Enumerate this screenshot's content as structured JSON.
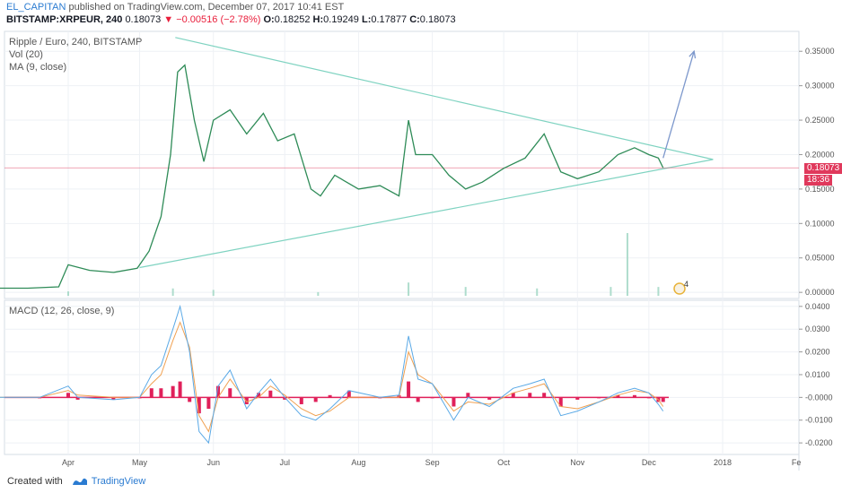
{
  "header": {
    "author": "EL_CAPITAN",
    "published": "published on TradingView.com, December 07, 2017 10:41 EST",
    "symbol": "BITSTAMP:XRPEUR, 240",
    "last": "0.18073",
    "change": "▼ −0.00516 (−2.78%)",
    "o_label": "O:",
    "o_value": "0.18252",
    "h_label": "H:",
    "h_value": "0.19249",
    "l_label": "L:",
    "l_value": "0.17877",
    "c_label": "C:",
    "c_value": "0.18073"
  },
  "legend": {
    "title": "Ripple / Euro, 240, BITSTAMP",
    "vol": "Vol (20)",
    "ma": "MA (9, close)",
    "macd": "MACD (12, 26, close, 9)"
  },
  "price_tag": {
    "value": "0.18073",
    "countdown": "18:36"
  },
  "event_badge": "4",
  "footer": {
    "created": "Created with",
    "brand": "TradingView"
  },
  "colors": {
    "price_line": "#2e8b57",
    "trend_line": "#7fd3c1",
    "arrow": "#7d98cc",
    "last_price": "#e0395c",
    "hist_pos": "#e0205a",
    "hist_neg": "#e0205a",
    "macd_line": "#5aa9e6",
    "signal_line": "#f0a050",
    "volume": "#a6d9c8"
  },
  "chart_data": [
    {
      "type": "line",
      "name": "price",
      "x_ticks": [
        "Apr",
        "May",
        "Jun",
        "Jul",
        "Aug",
        "Sep",
        "Oct",
        "Nov",
        "Dec",
        "2018",
        "Fe"
      ],
      "y_ticks": [
        "0.35000",
        "0.30000",
        "0.25000",
        "0.20000",
        "0.15000",
        "0.10000",
        "0.05000",
        "0.00000"
      ],
      "ylim": [
        -0.005,
        0.375
      ],
      "x": [
        "2017-03-01",
        "2017-03-15",
        "2017-03-28",
        "2017-04-01",
        "2017-04-10",
        "2017-04-20",
        "2017-04-30",
        "2017-05-05",
        "2017-05-10",
        "2017-05-14",
        "2017-05-17",
        "2017-05-20",
        "2017-05-24",
        "2017-05-28",
        "2017-06-01",
        "2017-06-08",
        "2017-06-15",
        "2017-06-22",
        "2017-06-28",
        "2017-07-05",
        "2017-07-12",
        "2017-07-16",
        "2017-07-22",
        "2017-08-01",
        "2017-08-10",
        "2017-08-18",
        "2017-08-22",
        "2017-08-25",
        "2017-09-01",
        "2017-09-08",
        "2017-09-15",
        "2017-09-22",
        "2017-10-01",
        "2017-10-10",
        "2017-10-18",
        "2017-10-25",
        "2017-11-01",
        "2017-11-10",
        "2017-11-18",
        "2017-11-25",
        "2017-12-01",
        "2017-12-05",
        "2017-12-07"
      ],
      "values": [
        0.006,
        0.006,
        0.008,
        0.04,
        0.032,
        0.029,
        0.035,
        0.06,
        0.11,
        0.2,
        0.32,
        0.33,
        0.25,
        0.19,
        0.25,
        0.265,
        0.23,
        0.26,
        0.22,
        0.23,
        0.15,
        0.14,
        0.17,
        0.15,
        0.155,
        0.14,
        0.25,
        0.2,
        0.2,
        0.17,
        0.15,
        0.16,
        0.18,
        0.195,
        0.23,
        0.175,
        0.165,
        0.175,
        0.2,
        0.21,
        0.2,
        0.195,
        0.181
      ],
      "last_value": 0.18073,
      "trendlines": [
        {
          "from": [
            "2017-05-16",
            0.37
          ],
          "to": [
            "2017-12-28",
            0.193
          ]
        },
        {
          "from": [
            "2017-05-01",
            0.036
          ],
          "to": [
            "2017-12-28",
            0.193
          ]
        }
      ],
      "projection_arrow": {
        "from": [
          "2017-12-07",
          0.195
        ],
        "to": [
          "2017-12-20",
          0.35
        ]
      }
    },
    {
      "type": "bar",
      "name": "volume",
      "note": "Vol (20)",
      "x": [
        "2017-04-01",
        "2017-05-15",
        "2017-06-01",
        "2017-07-15",
        "2017-08-22",
        "2017-09-15",
        "2017-10-15",
        "2017-11-15",
        "2017-11-22",
        "2017-12-05"
      ],
      "values": [
        0.006,
        0.01,
        0.008,
        0.005,
        0.018,
        0.012,
        0.01,
        0.012,
        0.085,
        0.012
      ]
    },
    {
      "type": "line",
      "name": "macd",
      "y_ticks": [
        "0.0400",
        "0.0300",
        "0.0200",
        "0.0100",
        "-0.0000",
        "-0.0100",
        "-0.0200"
      ],
      "ylim": [
        -0.0235,
        0.0415
      ],
      "x": [
        "2017-03-01",
        "2017-03-20",
        "2017-04-01",
        "2017-04-05",
        "2017-04-20",
        "2017-05-01",
        "2017-05-06",
        "2017-05-10",
        "2017-05-15",
        "2017-05-18",
        "2017-05-22",
        "2017-05-26",
        "2017-05-30",
        "2017-06-03",
        "2017-06-08",
        "2017-06-15",
        "2017-06-20",
        "2017-06-25",
        "2017-07-01",
        "2017-07-08",
        "2017-07-14",
        "2017-07-20",
        "2017-07-28",
        "2017-08-10",
        "2017-08-18",
        "2017-08-22",
        "2017-08-26",
        "2017-09-01",
        "2017-09-10",
        "2017-09-16",
        "2017-09-25",
        "2017-10-05",
        "2017-10-12",
        "2017-10-18",
        "2017-10-25",
        "2017-11-01",
        "2017-11-10",
        "2017-11-18",
        "2017-11-25",
        "2017-12-01",
        "2017-12-05",
        "2017-12-07"
      ],
      "macd": [
        0.0,
        0.0,
        0.005,
        0.0,
        -0.001,
        0.0,
        0.01,
        0.014,
        0.03,
        0.04,
        0.02,
        -0.015,
        -0.02,
        0.005,
        0.012,
        -0.005,
        0.002,
        0.008,
        0.0,
        -0.008,
        -0.01,
        -0.005,
        0.003,
        0.0,
        0.001,
        0.027,
        0.008,
        0.006,
        -0.01,
        0.0,
        -0.004,
        0.004,
        0.006,
        0.008,
        -0.008,
        -0.006,
        -0.002,
        0.002,
        0.004,
        0.002,
        -0.003,
        -0.006
      ],
      "signal": [
        0.0,
        0.0,
        0.003,
        0.001,
        0.0,
        0.0,
        0.006,
        0.01,
        0.025,
        0.033,
        0.022,
        -0.008,
        -0.015,
        0.0,
        0.008,
        -0.002,
        0.0,
        0.005,
        0.001,
        -0.005,
        -0.008,
        -0.006,
        0.0,
        0.0,
        0.0,
        0.02,
        0.01,
        0.006,
        -0.006,
        -0.002,
        -0.003,
        0.002,
        0.004,
        0.006,
        -0.004,
        -0.005,
        -0.002,
        0.001,
        0.003,
        0.002,
        -0.001,
        -0.004
      ]
    }
  ]
}
